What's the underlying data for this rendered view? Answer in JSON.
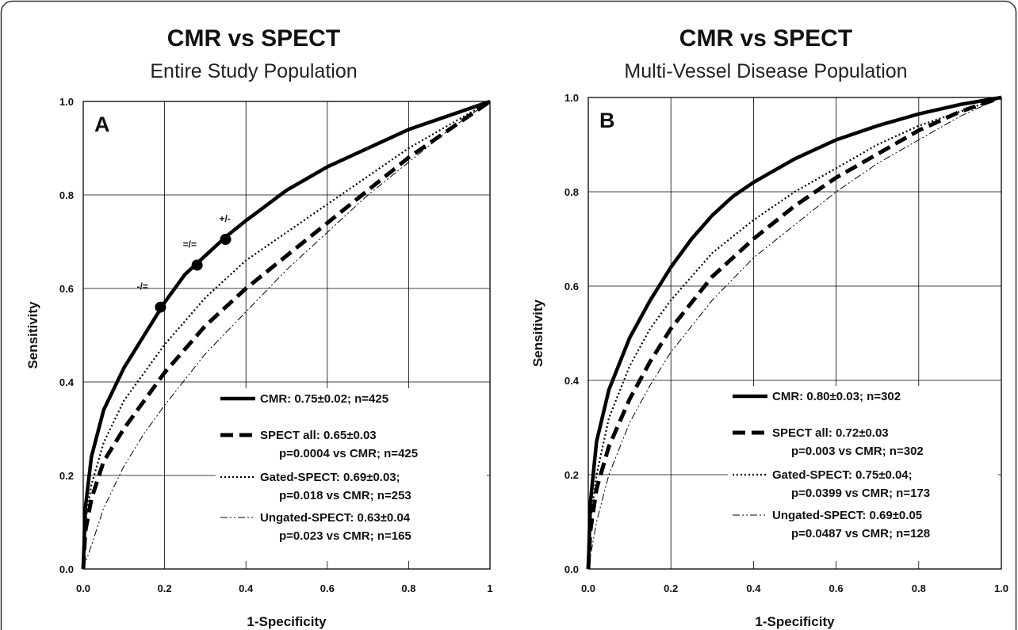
{
  "chart_data": [
    {
      "type": "line",
      "title": "CMR vs SPECT",
      "subtitle": "Entire Study Population",
      "panel": "A",
      "xlabel": "1-Specificity",
      "ylabel": "Sensitivity",
      "xlim": [
        0,
        1
      ],
      "ylim": [
        0,
        1
      ],
      "xticks": [
        "0.0",
        "0.2",
        "0.4",
        "0.6",
        "0.8",
        "1"
      ],
      "yticks": [
        "0.0",
        "0.2",
        "0.4",
        "0.6",
        "0.8",
        "1.0"
      ],
      "grid": true,
      "legend_position": "bottom-right",
      "series": [
        {
          "name": "CMR: 0.75±0.02; n=425",
          "style": "solid-thick",
          "x": [
            0,
            0.005,
            0.02,
            0.05,
            0.1,
            0.15,
            0.2,
            0.25,
            0.3,
            0.35,
            0.4,
            0.5,
            0.6,
            0.7,
            0.8,
            0.9,
            1.0
          ],
          "y": [
            0,
            0.13,
            0.24,
            0.34,
            0.43,
            0.5,
            0.57,
            0.63,
            0.67,
            0.71,
            0.745,
            0.81,
            0.86,
            0.9,
            0.94,
            0.97,
            1.0
          ]
        },
        {
          "name": "SPECT all: 0.65±0.03",
          "name_line2": "p=0.0004 vs CMR; n=425",
          "style": "dashed-thick",
          "x": [
            0,
            0.005,
            0.02,
            0.05,
            0.1,
            0.15,
            0.2,
            0.3,
            0.4,
            0.5,
            0.6,
            0.7,
            0.8,
            0.9,
            1.0
          ],
          "y": [
            0,
            0.08,
            0.15,
            0.23,
            0.3,
            0.36,
            0.42,
            0.52,
            0.6,
            0.67,
            0.74,
            0.81,
            0.88,
            0.94,
            1.0
          ]
        },
        {
          "name": "Gated-SPECT: 0.69±0.03;",
          "name_line2": "p=0.018 vs CMR; n=253",
          "style": "dotted",
          "x": [
            0,
            0.005,
            0.02,
            0.05,
            0.1,
            0.15,
            0.2,
            0.3,
            0.4,
            0.5,
            0.6,
            0.7,
            0.8,
            0.9,
            1.0
          ],
          "y": [
            0,
            0.1,
            0.18,
            0.27,
            0.36,
            0.42,
            0.48,
            0.58,
            0.66,
            0.72,
            0.78,
            0.84,
            0.9,
            0.95,
            1.0
          ]
        },
        {
          "name": "Ungated-SPECT: 0.63±0.04",
          "name_line2": "p=0.023 vs CMR; n=165",
          "style": "dashdot-thin",
          "x": [
            0,
            0.02,
            0.05,
            0.1,
            0.15,
            0.2,
            0.3,
            0.4,
            0.5,
            0.6,
            0.7,
            0.8,
            0.9,
            1.0
          ],
          "y": [
            0,
            0.05,
            0.13,
            0.22,
            0.29,
            0.35,
            0.46,
            0.55,
            0.64,
            0.72,
            0.8,
            0.87,
            0.94,
            1.0
          ]
        }
      ],
      "annotations": [
        {
          "text": "-/=",
          "x": 0.19,
          "y": 0.56
        },
        {
          "text": "=/=",
          "x": 0.28,
          "y": 0.65
        },
        {
          "text": "+/-",
          "x": 0.35,
          "y": 0.705
        }
      ]
    },
    {
      "type": "line",
      "title": "CMR vs SPECT",
      "subtitle": "Multi-Vessel Disease Population",
      "panel": "B",
      "xlabel": "1-Specificity",
      "ylabel": "Sensitivity",
      "xlim": [
        0,
        1
      ],
      "ylim": [
        0,
        1
      ],
      "xticks": [
        "0.0",
        "0.2",
        "0.4",
        "0.6",
        "0.8",
        "1.0"
      ],
      "yticks": [
        "0.0",
        "0.2",
        "0.4",
        "0.6",
        "0.8",
        "1.0"
      ],
      "grid": true,
      "legend_position": "bottom-right",
      "series": [
        {
          "name": "CMR: 0.80±0.03; n=302",
          "style": "solid-thick",
          "x": [
            0,
            0.005,
            0.02,
            0.05,
            0.1,
            0.15,
            0.2,
            0.25,
            0.3,
            0.35,
            0.4,
            0.5,
            0.6,
            0.7,
            0.8,
            0.9,
            1.0
          ],
          "y": [
            0,
            0.14,
            0.27,
            0.38,
            0.49,
            0.57,
            0.64,
            0.7,
            0.75,
            0.79,
            0.82,
            0.87,
            0.91,
            0.94,
            0.965,
            0.985,
            1.0
          ]
        },
        {
          "name": "SPECT all: 0.72±0.03",
          "name_line2": "p=0.003 vs CMR; n=302",
          "style": "dashed-thick",
          "x": [
            0,
            0.005,
            0.02,
            0.05,
            0.1,
            0.15,
            0.2,
            0.3,
            0.4,
            0.5,
            0.6,
            0.7,
            0.8,
            0.9,
            1.0
          ],
          "y": [
            0,
            0.08,
            0.17,
            0.26,
            0.36,
            0.44,
            0.51,
            0.62,
            0.7,
            0.77,
            0.83,
            0.88,
            0.93,
            0.97,
            1.0
          ]
        },
        {
          "name": "Gated-SPECT: 0.75±0.04;",
          "name_line2": "p=0.0399 vs CMR; n=173",
          "style": "dotted",
          "x": [
            0,
            0.005,
            0.02,
            0.05,
            0.1,
            0.15,
            0.2,
            0.3,
            0.4,
            0.5,
            0.6,
            0.7,
            0.8,
            0.9,
            1.0
          ],
          "y": [
            0,
            0.1,
            0.2,
            0.32,
            0.43,
            0.51,
            0.57,
            0.67,
            0.74,
            0.8,
            0.85,
            0.9,
            0.94,
            0.97,
            1.0
          ]
        },
        {
          "name": "Ungated-SPECT: 0.69±0.05",
          "name_line2": "p=0.0487 vs CMR; n=128",
          "style": "dashdot-thin",
          "x": [
            0,
            0.02,
            0.05,
            0.1,
            0.15,
            0.2,
            0.3,
            0.4,
            0.5,
            0.6,
            0.7,
            0.8,
            0.9,
            1.0
          ],
          "y": [
            0,
            0.1,
            0.2,
            0.31,
            0.39,
            0.46,
            0.57,
            0.66,
            0.73,
            0.8,
            0.86,
            0.91,
            0.96,
            1.0
          ]
        }
      ]
    }
  ]
}
